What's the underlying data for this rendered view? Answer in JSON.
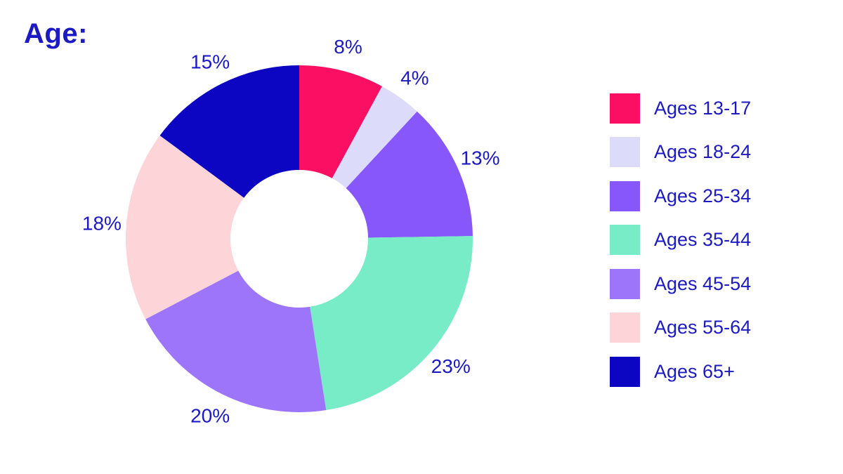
{
  "chart_data": {
    "type": "pie",
    "title": "Age:",
    "categories": [
      "Ages 13-17",
      "Ages 18-24",
      "Ages 25-34",
      "Ages 35-44",
      "Ages 45-54",
      "Ages 55-64",
      "Ages 65+"
    ],
    "values": [
      8,
      4,
      13,
      23,
      20,
      18,
      15
    ],
    "data_labels": [
      "8%",
      "4%",
      "13%",
      "23%",
      "20%",
      "18%",
      "15%"
    ],
    "colors": [
      "#fb0f63",
      "#dcdcfa",
      "#8757fc",
      "#78ecc6",
      "#9d75fb",
      "#fdd5d8",
      "#0c06c3"
    ],
    "donut": true,
    "start": "12 o'clock",
    "direction": "clockwise",
    "legend_position": "right"
  }
}
